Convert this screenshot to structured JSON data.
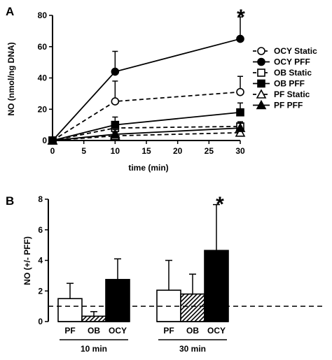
{
  "chart_data": [
    {
      "panel": "A",
      "type": "line",
      "xlabel": "time (min)",
      "ylabel": "NO (nmol/ng DNA)",
      "xlim": [
        0,
        30
      ],
      "ylim": [
        0,
        80
      ],
      "xticks": [
        "0",
        "5",
        "10",
        "15",
        "20",
        "25",
        "30"
      ],
      "yticks": [
        "0",
        "20",
        "40",
        "60",
        "80"
      ],
      "x": [
        0,
        10,
        30
      ],
      "series": [
        {
          "name": "OCY Static",
          "marker": "circle",
          "fill": "open",
          "line": "dashed",
          "values": [
            0,
            25,
            31
          ],
          "errors": [
            0,
            13,
            10
          ]
        },
        {
          "name": "OCY PFF",
          "marker": "circle",
          "fill": "filled",
          "line": "solid",
          "values": [
            0,
            44,
            65
          ],
          "errors": [
            0,
            13,
            14
          ]
        },
        {
          "name": "OB Static",
          "marker": "square",
          "fill": "open",
          "line": "dashed",
          "values": [
            0,
            8,
            9
          ],
          "errors": [
            0,
            4,
            3
          ]
        },
        {
          "name": "OB PFF",
          "marker": "square",
          "fill": "filled",
          "line": "solid",
          "values": [
            0,
            10,
            18
          ],
          "errors": [
            0,
            5,
            6
          ]
        },
        {
          "name": "PF Static",
          "marker": "triangle",
          "fill": "open",
          "line": "dashed",
          "values": [
            0,
            3,
            5
          ],
          "errors": [
            0,
            2,
            2
          ]
        },
        {
          "name": "PF PFF",
          "marker": "triangle",
          "fill": "filled",
          "line": "solid",
          "values": [
            0,
            4,
            8
          ],
          "errors": [
            0,
            3,
            3
          ]
        }
      ],
      "annotation": "*",
      "legend_position": "right"
    },
    {
      "panel": "B",
      "type": "bar",
      "ylabel": "NO (+/- PFF)",
      "ylim": [
        0,
        8
      ],
      "yticks": [
        "0",
        "2",
        "4",
        "6",
        "8"
      ],
      "reference_line": 1,
      "groups": [
        {
          "name": "10 min",
          "bars": [
            {
              "label": "PF",
              "value": 1.5,
              "error": 1.0,
              "fill": "white"
            },
            {
              "label": "OB",
              "value": 0.35,
              "error": 0.3,
              "fill": "hatched"
            },
            {
              "label": "OCY",
              "value": 2.75,
              "error": 1.35,
              "fill": "black"
            }
          ]
        },
        {
          "name": "30 min",
          "bars": [
            {
              "label": "PF",
              "value": 2.05,
              "error": 1.95,
              "fill": "white"
            },
            {
              "label": "OB",
              "value": 1.8,
              "error": 1.3,
              "fill": "hatched"
            },
            {
              "label": "OCY",
              "value": 4.65,
              "error": 3.0,
              "fill": "black"
            }
          ]
        }
      ],
      "annotation": "*"
    }
  ]
}
